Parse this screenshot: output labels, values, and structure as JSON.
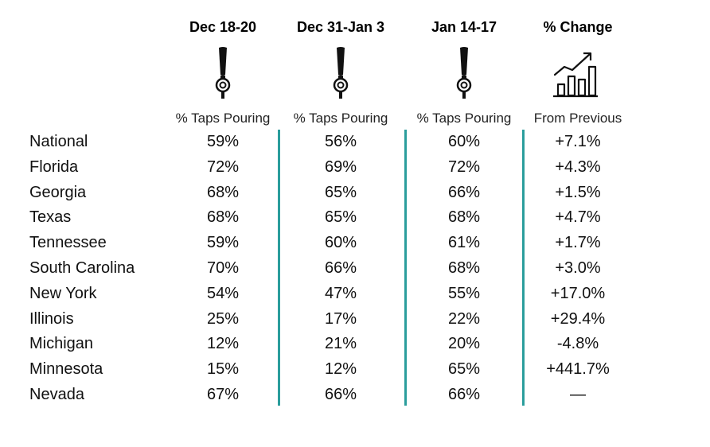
{
  "chart_data": {
    "type": "table",
    "columns": [
      {
        "header": "Dec 18-20",
        "subheader": "% Taps Pouring",
        "icon": "beer-tap-icon"
      },
      {
        "header": "Dec 31-Jan 3",
        "subheader": "% Taps Pouring",
        "icon": "beer-tap-icon"
      },
      {
        "header": "Jan 14-17",
        "subheader": "% Taps Pouring",
        "icon": "beer-tap-icon"
      },
      {
        "header": "% Change",
        "subheader": "From Previous",
        "icon": "growth-chart-icon"
      }
    ],
    "rows": [
      {
        "label": "National",
        "values": [
          "59%",
          "56%",
          "60%",
          "+7.1%"
        ]
      },
      {
        "label": "Florida",
        "values": [
          "72%",
          "69%",
          "72%",
          "+4.3%"
        ]
      },
      {
        "label": "Georgia",
        "values": [
          "68%",
          "65%",
          "66%",
          "+1.5%"
        ]
      },
      {
        "label": "Texas",
        "values": [
          "68%",
          "65%",
          "68%",
          "+4.7%"
        ]
      },
      {
        "label": "Tennessee",
        "values": [
          "59%",
          "60%",
          "61%",
          "+1.7%"
        ]
      },
      {
        "label": "South Carolina",
        "values": [
          "70%",
          "66%",
          "68%",
          "+3.0%"
        ]
      },
      {
        "label": "New York",
        "values": [
          "54%",
          "47%",
          "55%",
          "+17.0%"
        ]
      },
      {
        "label": "Illinois",
        "values": [
          "25%",
          "17%",
          "22%",
          "+29.4%"
        ]
      },
      {
        "label": "Michigan",
        "values": [
          "12%",
          "21%",
          "20%",
          "-4.8%"
        ]
      },
      {
        "label": "Minnesota",
        "values": [
          "15%",
          "12%",
          "65%",
          "+441.7%"
        ]
      },
      {
        "label": "Nevada",
        "values": [
          "67%",
          "66%",
          "66%",
          "—"
        ]
      }
    ]
  },
  "colors": {
    "divider": "#2a9d9c",
    "text": "#111111"
  }
}
